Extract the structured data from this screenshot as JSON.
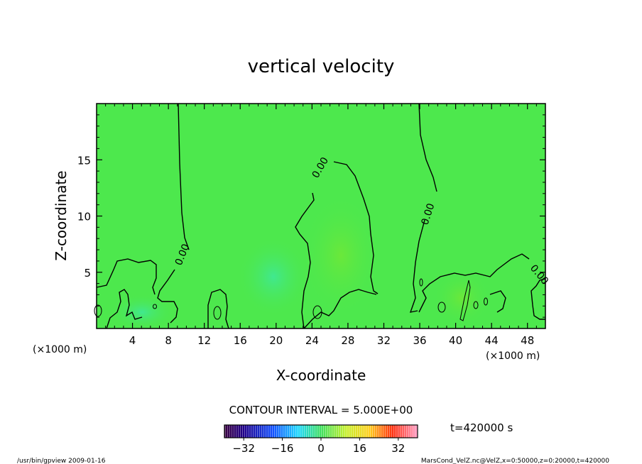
{
  "chart_data": {
    "type": "heatmap",
    "title": "vertical velocity",
    "xlabel": "X-coordinate",
    "ylabel": "Z-coordinate",
    "x_unit_left": "(×1000 m)",
    "x_unit_right": "(×1000 m)",
    "xlim": [
      0,
      50
    ],
    "ylim": [
      0,
      20
    ],
    "x_ticks": [
      "4",
      "8",
      "12",
      "16",
      "20",
      "24",
      "28",
      "32",
      "36",
      "40",
      "44",
      "48"
    ],
    "x_tick_values": [
      4,
      8,
      12,
      16,
      20,
      24,
      28,
      32,
      36,
      40,
      44,
      48
    ],
    "y_ticks": [
      "5",
      "10",
      "15"
    ],
    "y_tick_values": [
      5,
      10,
      15
    ],
    "field_description_values": {
      "background_level": 0
    },
    "contour_interval_label": "CONTOUR INTERVAL = 5.000E+00",
    "time_label": "t=420000 s",
    "colorbar": {
      "min": -40,
      "max": 40,
      "tick_labels": [
        "−32",
        "−16",
        "0",
        "16",
        "32"
      ],
      "tick_values": [
        -32,
        -16,
        0,
        16,
        32
      ]
    },
    "contour_labels": [
      {
        "text": "0.00",
        "x": 9.6,
        "y": 5.8
      },
      {
        "text": "0.00",
        "x": 24.4,
        "y": 14.3
      },
      {
        "text": "0.00",
        "x": 37.1,
        "y": 10.0
      },
      {
        "text": "0.00",
        "x": 49.0,
        "y": 4.7
      }
    ]
  },
  "footer": {
    "left": "/usr/bin/gpview   2009-01-16",
    "right": "MarsCond_VelZ.nc@VelZ,x=0:50000,z=0:20000,t=420000"
  },
  "colors": {
    "field": "#4de84d",
    "contour": "#000000"
  }
}
